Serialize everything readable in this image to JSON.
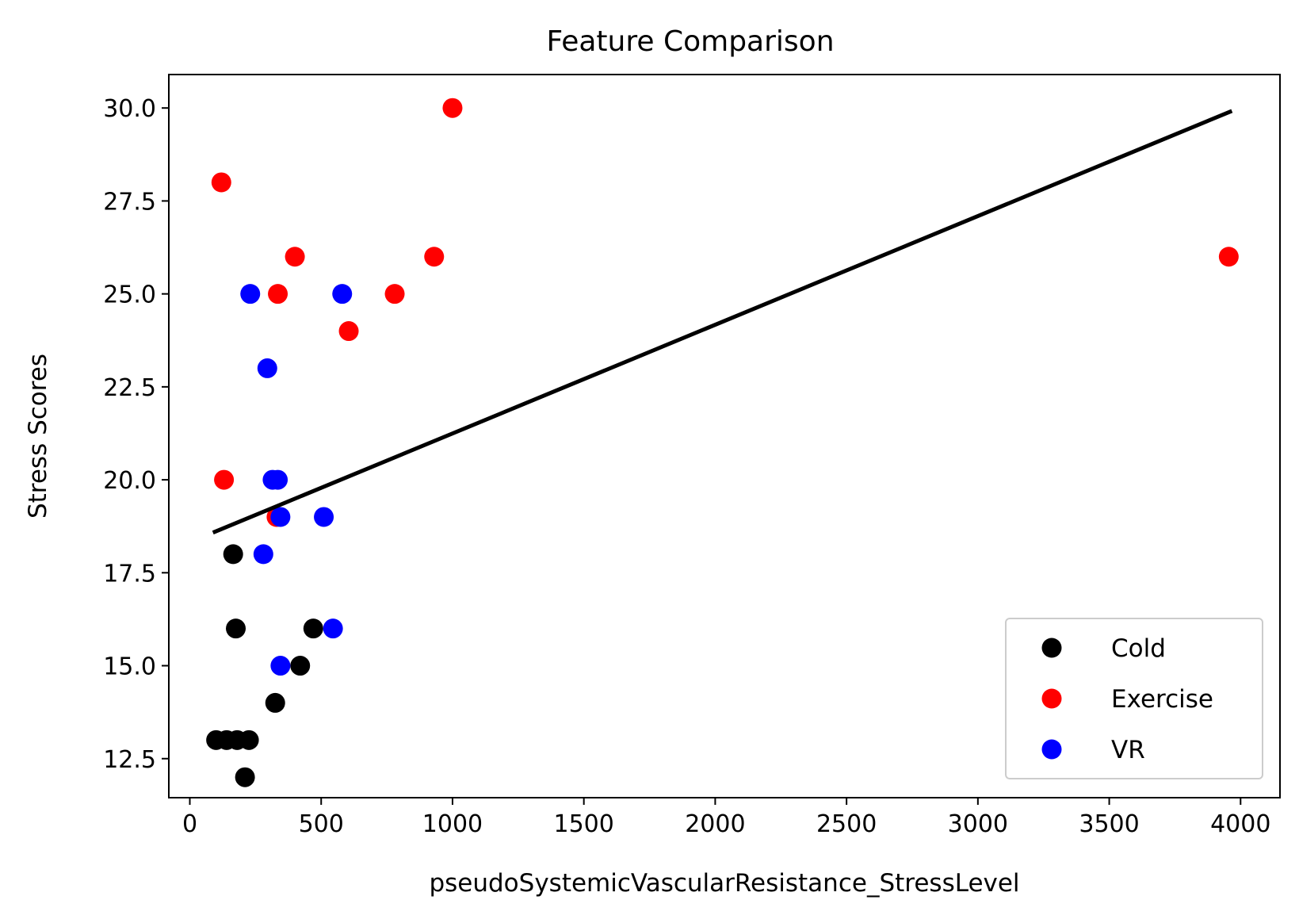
{
  "chart_data": {
    "type": "scatter",
    "title": "Feature Comparison",
    "xlabel": "pseudoSystemicVascularResistance_StressLevel",
    "ylabel": "Stress Scores",
    "xlim": [
      -80,
      4150
    ],
    "ylim": [
      11.45,
      30.9
    ],
    "xticks": [
      0,
      500,
      1000,
      1500,
      2000,
      2500,
      3000,
      3500,
      4000
    ],
    "xtick_labels": [
      "0",
      "500",
      "1000",
      "1500",
      "2000",
      "2500",
      "3000",
      "3500",
      "4000"
    ],
    "yticks": [
      12.5,
      15.0,
      17.5,
      20.0,
      22.5,
      25.0,
      27.5,
      30.0
    ],
    "ytick_labels": [
      "12.5",
      "15.0",
      "17.5",
      "20.0",
      "22.5",
      "25.0",
      "27.5",
      "30.0"
    ],
    "grid": false,
    "legend_position": "lower-right",
    "series": [
      {
        "name": "Cold",
        "color": "#000000",
        "points": [
          {
            "x": 100,
            "y": 13
          },
          {
            "x": 140,
            "y": 13
          },
          {
            "x": 180,
            "y": 13
          },
          {
            "x": 225,
            "y": 13
          },
          {
            "x": 210,
            "y": 12
          },
          {
            "x": 165,
            "y": 18
          },
          {
            "x": 175,
            "y": 16
          },
          {
            "x": 325,
            "y": 14
          },
          {
            "x": 420,
            "y": 15
          },
          {
            "x": 470,
            "y": 16
          }
        ]
      },
      {
        "name": "Exercise",
        "color": "#ff0000",
        "points": [
          {
            "x": 120,
            "y": 28
          },
          {
            "x": 130,
            "y": 20
          },
          {
            "x": 335,
            "y": 25
          },
          {
            "x": 400,
            "y": 26
          },
          {
            "x": 330,
            "y": 19
          },
          {
            "x": 605,
            "y": 24
          },
          {
            "x": 780,
            "y": 25
          },
          {
            "x": 930,
            "y": 26
          },
          {
            "x": 1000,
            "y": 30
          },
          {
            "x": 3955,
            "y": 26
          }
        ]
      },
      {
        "name": "VR",
        "color": "#0000ff",
        "points": [
          {
            "x": 230,
            "y": 25
          },
          {
            "x": 295,
            "y": 23
          },
          {
            "x": 315,
            "y": 20
          },
          {
            "x": 335,
            "y": 20
          },
          {
            "x": 345,
            "y": 19
          },
          {
            "x": 280,
            "y": 18
          },
          {
            "x": 510,
            "y": 19
          },
          {
            "x": 580,
            "y": 25
          },
          {
            "x": 545,
            "y": 16
          },
          {
            "x": 345,
            "y": 15
          }
        ]
      }
    ],
    "fit_line": {
      "color": "#000000",
      "points": [
        {
          "x": 95,
          "y": 18.6
        },
        {
          "x": 3960,
          "y": 29.9
        }
      ]
    }
  }
}
